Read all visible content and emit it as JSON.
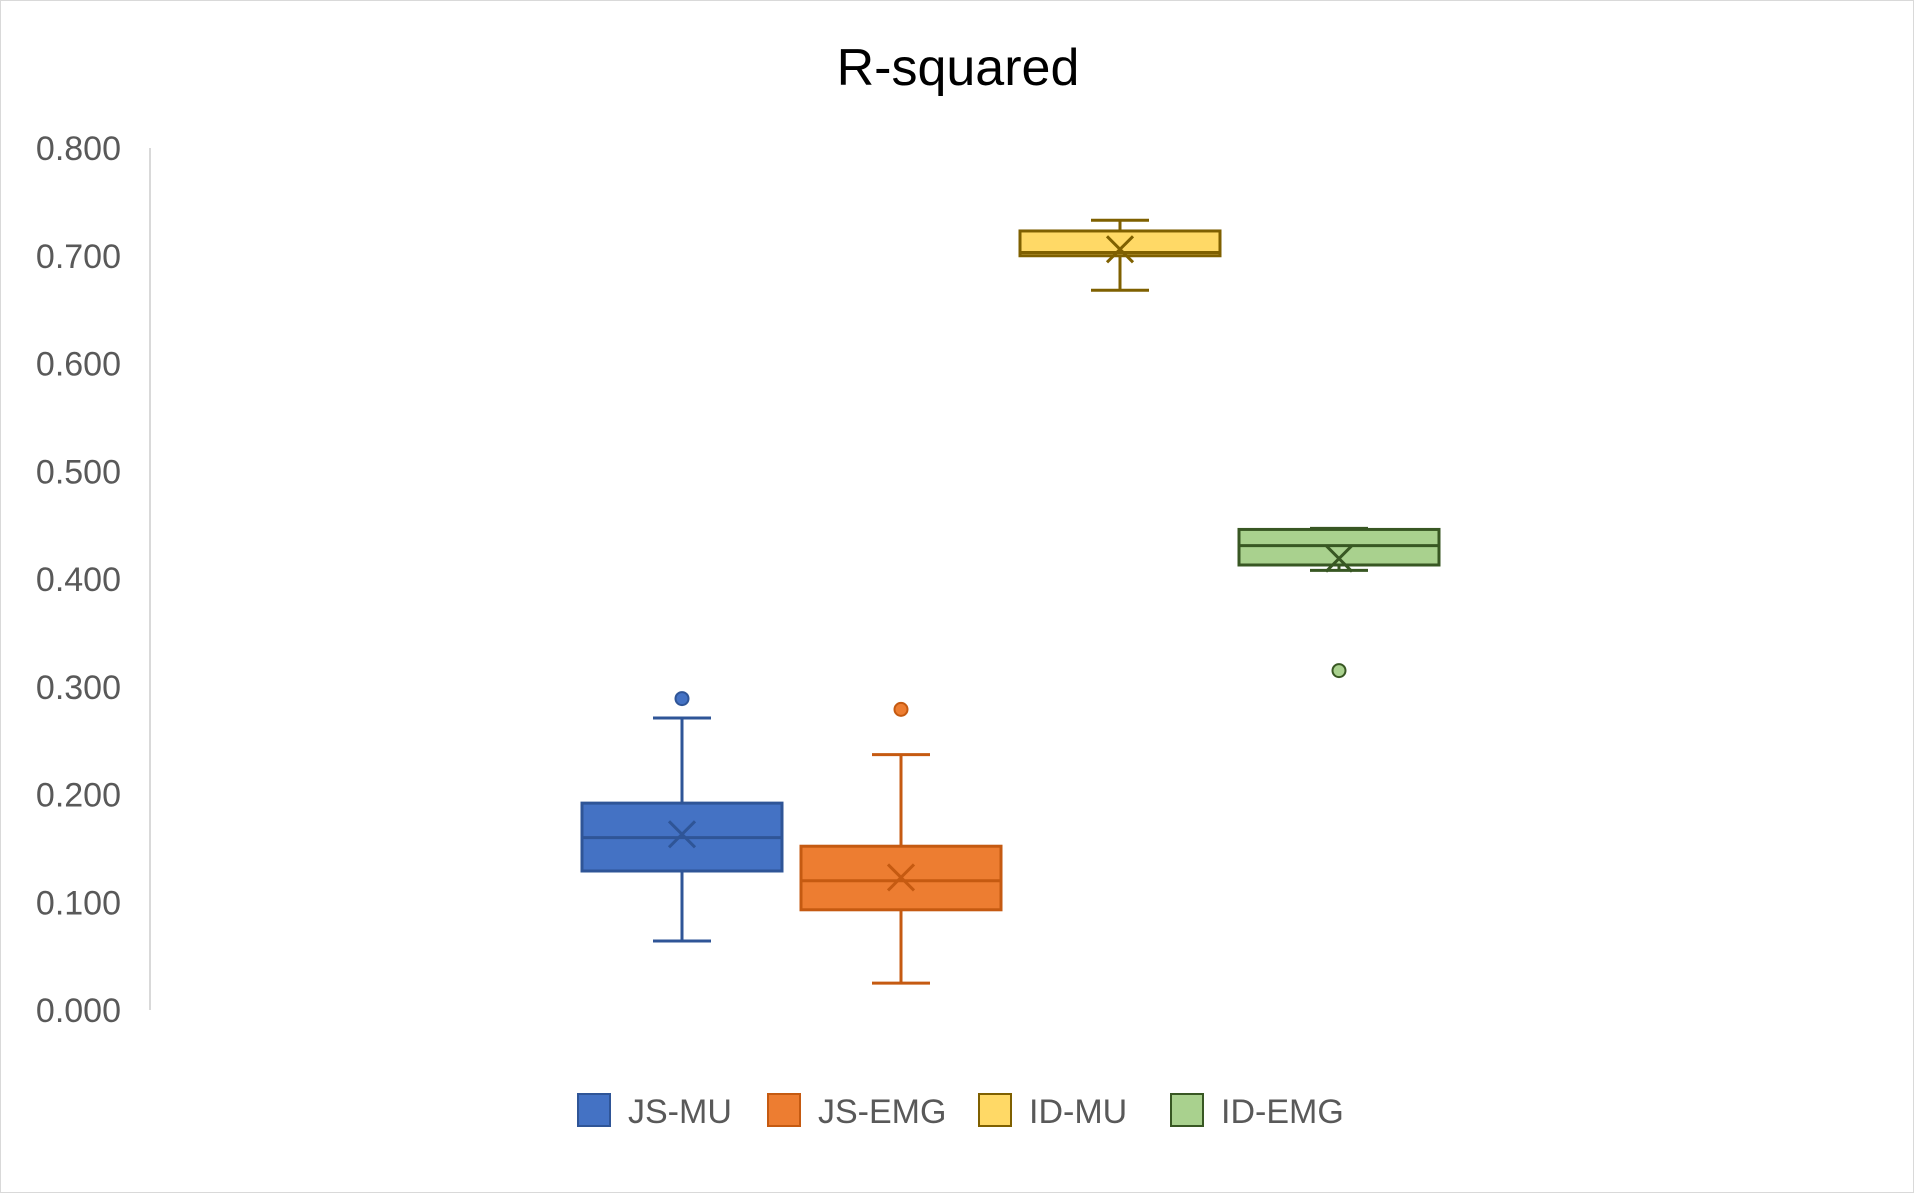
{
  "chart_data": {
    "type": "box",
    "title": "R-squared",
    "xlabel": "",
    "ylabel": "",
    "ylim": [
      0,
      0.8
    ],
    "yticks": [
      "0.000",
      "0.100",
      "0.200",
      "0.300",
      "0.400",
      "0.500",
      "0.600",
      "0.700",
      "0.800"
    ],
    "grid": false,
    "legend_position": "bottom",
    "series": [
      {
        "name": "JS-MU",
        "fill": "#4472c4",
        "stroke": "#2f5597",
        "min": 0.064,
        "q1": 0.129,
        "median": 0.16,
        "q3": 0.192,
        "max": 0.271,
        "mean": 0.163,
        "outliers": [
          0.289
        ]
      },
      {
        "name": "JS-EMG",
        "fill": "#ed7d31",
        "stroke": "#c55a11",
        "min": 0.025,
        "q1": 0.093,
        "median": 0.12,
        "q3": 0.152,
        "max": 0.237,
        "mean": 0.123,
        "outliers": [
          0.279
        ]
      },
      {
        "name": "ID-MU",
        "fill": "#ffd966",
        "stroke": "#7f6000",
        "min": 0.668,
        "q1": 0.7,
        "median": 0.703,
        "q3": 0.723,
        "max": 0.733,
        "mean": 0.706,
        "outliers": []
      },
      {
        "name": "ID-EMG",
        "fill": "#a9d18e",
        "stroke": "#385723",
        "min": 0.408,
        "q1": 0.413,
        "median": 0.431,
        "q3": 0.446,
        "max": 0.447,
        "mean": 0.419,
        "outliers": [
          0.315
        ]
      }
    ]
  }
}
